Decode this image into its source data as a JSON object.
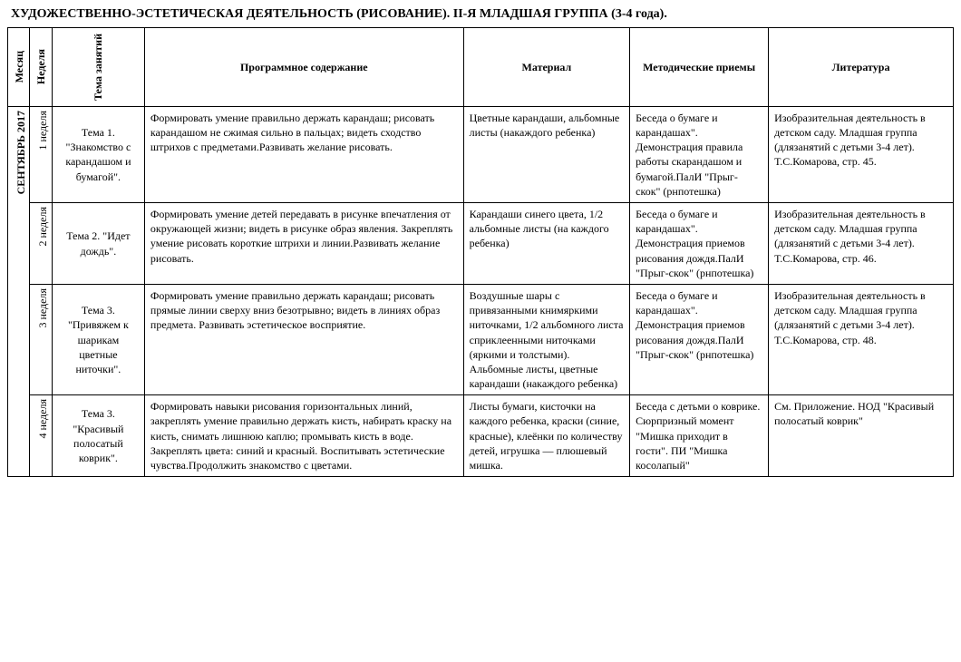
{
  "title": "ХУДОЖЕСТВЕННО-ЭСТЕТИЧЕСКАЯ ДЕЯТЕЛЬНОСТЬ (РИСОВАНИЕ). II-Я МЛАДШАЯ ГРУППА (3-4 года).",
  "headers": {
    "month": "Месяц",
    "week": "Неделя",
    "topic": "Тема занятий",
    "program": "Программное содержание",
    "material": "Материал",
    "methods": "Методические приемы",
    "literature": "Литература"
  },
  "month_label": "СЕНТЯБРЬ 2017",
  "rows": [
    {
      "week": "1 неделя",
      "topic": "Тема 1. \"Знакомство с карандашом и бумагой\".",
      "program": "Формировать умение правильно держать карандаш; рисовать карандашом не сжимая сильно в пальцах; видеть сходство штрихов с предметами.Развивать желание рисовать.",
      "material": "Цветные карандаши, альбомные листы (накаждого ребенка)",
      "methods": "Беседа о бумаге и карандашах\". Демонстрация правила работы скарандашом и бумагой.ПалИ \"Прыг-скок\" (рнпотешка)",
      "literature": "Изобразительная деятельность в детском саду. Младшая группа (длязанятий с детьми 3-4 лет). Т.С.Комарова, стр. 45."
    },
    {
      "week": "2 неделя",
      "topic": "Тема 2. \"Идет дождь\".",
      "program": " Формировать  умение детей передавать в рисунке впечатления от окружающей жизни; видеть в рисунке образ явления. Закреплять умение рисовать короткие штрихи и линии.Развивать желание рисовать.",
      "material": "Карандаши синего цвета, 1/2 альбомные листы (на каждого ребенка)",
      "methods": "Беседа о бумаге и карандашах\". Демонстрация приемов рисования дождя.ПалИ \"Прыг-скок\" (рнпотешка)",
      "literature": "Изобразительная деятельность в детском саду. Младшая группа (длязанятий с детьми 3-4 лет). Т.С.Комарова, стр. 46."
    },
    {
      "week": "3 неделя",
      "topic": "Тема 3. \"Привяжем к шарикам цветные ниточки\".",
      "program": "Формировать умение правильно держать карандаш; рисовать прямые линии сверху вниз безотрывно; видеть в линиях образ предмета. Развивать эстетическое восприятие.",
      "material": "Воздушные шары с привязанными книмяркими ниточками, 1/2 альбомного листа сприклеенными ниточками (яркими и толстыми). Альбомные листы, цветные карандаши (накаждого ребенка)",
      "methods": "Беседа о бумаге и карандашах\". Демонстрация приемов рисования дождя.ПалИ \"Прыг-скок\" (рнпотешка)",
      "literature": "Изобразительная деятельность в детском саду. Младшая группа (длязанятий с детьми 3-4 лет). Т.С.Комарова, стр. 48."
    },
    {
      "week": "4 неделя",
      "topic": "Тема 3. \"Красивый полосатый коврик\".",
      "program": "Формировать навыки  рисования горизонтальных линий, закреплять умение правильно держать кисть, набирать краску на кисть, снимать лишнюю каплю; промывать кисть в  воде. Закреплять цвета: синий и красный. Воспитывать эстетические чувства.Продолжить знакомство с цветами.",
      "material": "Листы бумаги, кисточки на каждого ребенка, краски (синие, красные), клеёнки по количеству детей, игрушка — плюшевый мишка.",
      "methods": "Беседа с детьми о коврике. Сюрпризный момент \"Мишка приходит в гости\". ПИ \"Мишка косолапый\"",
      "literature": "См. Приложение. НОД \"Красивый полосатый коврик\""
    }
  ]
}
